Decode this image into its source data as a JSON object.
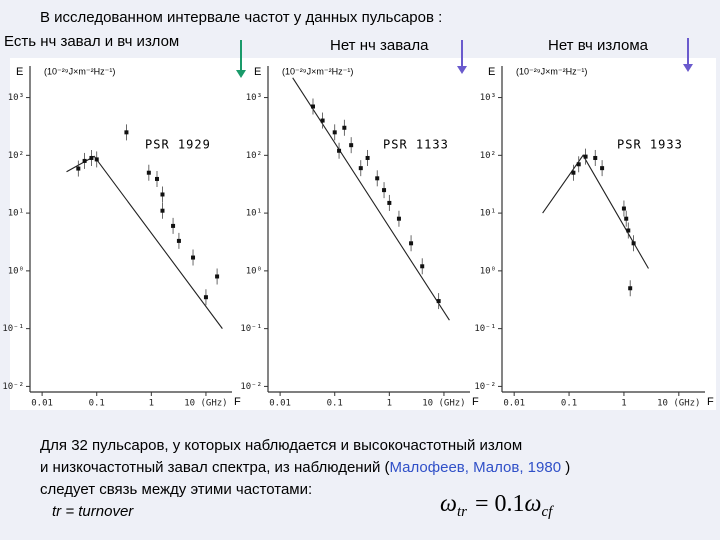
{
  "title": "В исследованном интервале частот у данных пульсаров :",
  "panels": [
    {
      "caption": "Есть нч завал и вч излом",
      "y_axis_label": "E",
      "unit": "(10⁻²⁹J×m⁻²Hz⁻¹)",
      "x_axis_label": "F",
      "pulsar": "PSR 1929",
      "xlim": [
        0.006,
        30
      ],
      "ylim": [
        0.008,
        3000
      ],
      "xticks": [
        0.01,
        0.1,
        1,
        {
          "value": 10,
          "label": "10 (GHz)"
        }
      ],
      "yticks": [
        {
          "value": 1000,
          "label": "10³"
        },
        {
          "value": 100,
          "label": "10²"
        },
        {
          "value": 10,
          "label": "10¹"
        },
        {
          "value": 1,
          "label": "10⁰"
        },
        {
          "value": 0.1,
          "label": "10⁻¹"
        },
        {
          "value": 0.01,
          "label": "10⁻²"
        }
      ],
      "points": {
        "x": [
          0.046,
          0.06,
          0.08,
          0.1,
          0.35,
          0.9,
          1.27,
          1.6,
          1.6,
          2.5,
          3.2,
          5.8,
          10,
          16
        ],
        "y": [
          59,
          80,
          90,
          85,
          250,
          50,
          39,
          21,
          11,
          6,
          3.3,
          1.7,
          0.35,
          0.8
        ]
      },
      "fit": {
        "x": [
          0.028,
          0.09,
          20
        ],
        "y": [
          52,
          96,
          0.1
        ]
      }
    },
    {
      "caption": "Нет нч завала",
      "y_axis_label": "E",
      "unit": "(10⁻²⁹J×m⁻²Hz⁻¹)",
      "x_axis_label": "F",
      "pulsar": "PSR 1133",
      "xlim": [
        0.006,
        30
      ],
      "ylim": [
        0.008,
        3000
      ],
      "xticks": [
        0.01,
        0.1,
        1,
        {
          "value": 10,
          "label": "10 (GHz)"
        }
      ],
      "yticks": [
        {
          "value": 1000,
          "label": "10³"
        },
        {
          "value": 100,
          "label": "10²"
        },
        {
          "value": 10,
          "label": "10¹"
        },
        {
          "value": 1,
          "label": "10⁰"
        },
        {
          "value": 0.1,
          "label": "10⁻¹"
        },
        {
          "value": 0.01,
          "label": "10⁻²"
        }
      ],
      "points": {
        "x": [
          0.04,
          0.06,
          0.1,
          0.12,
          0.15,
          0.2,
          0.3,
          0.4,
          0.6,
          0.8,
          1,
          1.5,
          2.5,
          4,
          8
        ],
        "y": [
          700,
          400,
          250,
          120,
          300,
          150,
          60,
          90,
          40,
          25,
          15,
          8,
          3,
          1.2,
          0.3
        ]
      },
      "fit": {
        "x": [
          0.017,
          12.6
        ],
        "y": [
          2200,
          0.14
        ]
      }
    },
    {
      "caption": "Нет вч излома",
      "y_axis_label": "E",
      "unit": "(10⁻²⁹J×m⁻²Hz⁻¹)",
      "x_axis_label": "F",
      "pulsar": "PSR 1933",
      "xlim": [
        0.006,
        30
      ],
      "ylim": [
        0.008,
        3000
      ],
      "xticks": [
        0.01,
        0.1,
        1,
        {
          "value": 10,
          "label": "10 (GHz)"
        }
      ],
      "yticks": [
        {
          "value": 1000,
          "label": "10³"
        },
        {
          "value": 100,
          "label": "10²"
        },
        {
          "value": 10,
          "label": "10¹"
        },
        {
          "value": 1,
          "label": "10⁰"
        },
        {
          "value": 0.1,
          "label": "10⁻¹"
        },
        {
          "value": 0.01,
          "label": "10⁻²"
        }
      ],
      "points": {
        "x": [
          0.12,
          0.15,
          0.2,
          0.3,
          0.4,
          1,
          1.1,
          1.2,
          1.5,
          1.3
        ],
        "y": [
          50,
          70,
          95,
          90,
          60,
          12,
          8,
          5,
          3,
          0.5
        ]
      },
      "fit": {
        "x": [
          0.033,
          0.18,
          2.8
        ],
        "y": [
          10,
          100,
          1.1
        ]
      }
    }
  ],
  "body": {
    "line1": "Для 32 пульсаров, у которых наблюдается и высокочастотный излом",
    "line2_start": "и низкочастотный завал спектра, из наблюдений (",
    "reference": "Малофеев, Малов, 1980",
    "line2_end": " )",
    "line3": "следует связь между этими частотами:",
    "note": "tr = turnover"
  },
  "formula": {
    "lhs": "ω",
    "lhs_sub": "tr",
    "equals": "= 0.1",
    "rhs": "ω",
    "rhs_sub": "cf"
  }
}
